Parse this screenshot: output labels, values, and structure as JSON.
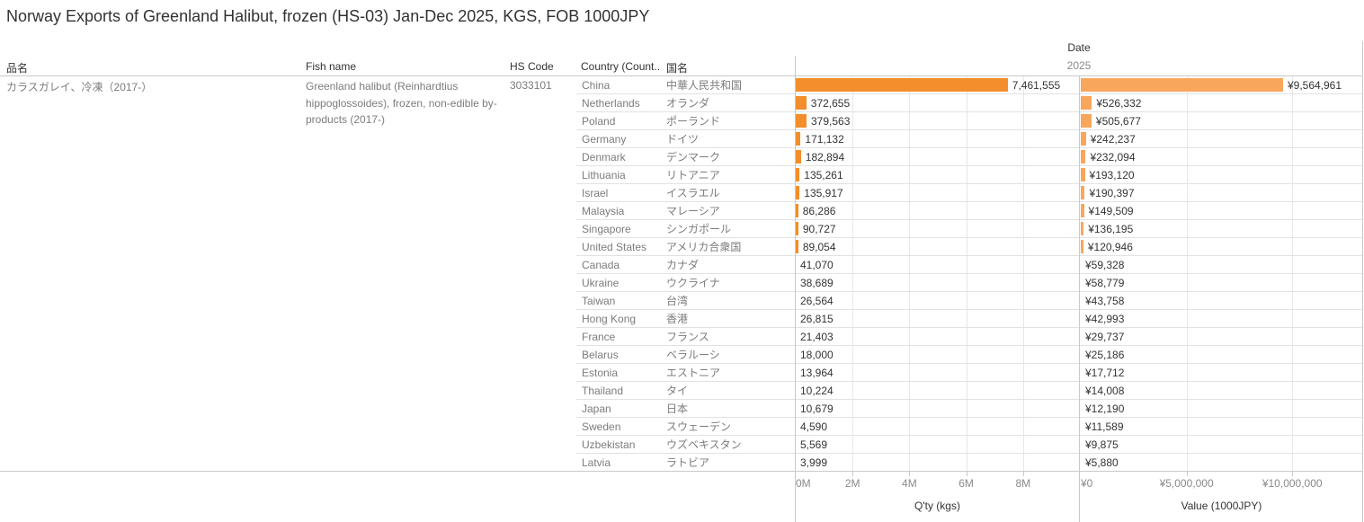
{
  "title": "Norway Exports of Greenland Halibut, frozen (HS-03) Jan-Dec 2025, KGS, FOB 1000JPY",
  "header": {
    "date_label": "Date",
    "year": "2025"
  },
  "columns": {
    "product": "品名",
    "fish_name": "Fish name",
    "hs_code": "HS Code",
    "country": "Country (Count..",
    "country_jp": "国名"
  },
  "product": {
    "name_jp": "カラスガレイ、冷凍（2017-）",
    "fish_name": "Greenland halibut (Reinhardtius hippoglossoides), frozen, non-edible by-products (2017-)",
    "hs_code": "3033101"
  },
  "colors": {
    "qty_bar": "#f28e2b",
    "value_bar": "#f9a65d"
  },
  "rows": [
    {
      "country": "China",
      "country_jp": "中華人民共和国",
      "qty_label": "7,461,555",
      "value_label": "¥9,564,961"
    },
    {
      "country": "Netherlands",
      "country_jp": "オランダ",
      "qty_label": "372,655",
      "value_label": "¥526,332"
    },
    {
      "country": "Poland",
      "country_jp": "ポーランド",
      "qty_label": "379,563",
      "value_label": "¥505,677"
    },
    {
      "country": "Germany",
      "country_jp": "ドイツ",
      "qty_label": "171,132",
      "value_label": "¥242,237"
    },
    {
      "country": "Denmark",
      "country_jp": "デンマーク",
      "qty_label": "182,894",
      "value_label": "¥232,094"
    },
    {
      "country": "Lithuania",
      "country_jp": "リトアニア",
      "qty_label": "135,261",
      "value_label": "¥193,120"
    },
    {
      "country": "Israel",
      "country_jp": "イスラエル",
      "qty_label": "135,917",
      "value_label": "¥190,397"
    },
    {
      "country": "Malaysia",
      "country_jp": "マレーシア",
      "qty_label": "86,286",
      "value_label": "¥149,509"
    },
    {
      "country": "Singapore",
      "country_jp": "シンガポール",
      "qty_label": "90,727",
      "value_label": "¥136,195"
    },
    {
      "country": "United States",
      "country_jp": "アメリカ合衆国",
      "qty_label": "89,054",
      "value_label": "¥120,946"
    },
    {
      "country": "Canada",
      "country_jp": "カナダ",
      "qty_label": "41,070",
      "value_label": "¥59,328"
    },
    {
      "country": "Ukraine",
      "country_jp": "ウクライナ",
      "qty_label": "38,689",
      "value_label": "¥58,779"
    },
    {
      "country": "Taiwan",
      "country_jp": "台湾",
      "qty_label": "26,564",
      "value_label": "¥43,758"
    },
    {
      "country": "Hong Kong",
      "country_jp": "香港",
      "qty_label": "26,815",
      "value_label": "¥42,993"
    },
    {
      "country": "France",
      "country_jp": "フランス",
      "qty_label": "21,403",
      "value_label": "¥29,737"
    },
    {
      "country": "Belarus",
      "country_jp": "ベラルーシ",
      "qty_label": "18,000",
      "value_label": "¥25,186"
    },
    {
      "country": "Estonia",
      "country_jp": "エストニア",
      "qty_label": "13,964",
      "value_label": "¥17,712"
    },
    {
      "country": "Thailand",
      "country_jp": "タイ",
      "qty_label": "10,224",
      "value_label": "¥14,008"
    },
    {
      "country": "Japan",
      "country_jp": "日本",
      "qty_label": "10,679",
      "value_label": "¥12,190"
    },
    {
      "country": "Sweden",
      "country_jp": "スウェーデン",
      "qty_label": "4,590",
      "value_label": "¥11,589"
    },
    {
      "country": "Uzbekistan",
      "country_jp": "ウズベキスタン",
      "qty_label": "5,569",
      "value_label": "¥9,875"
    },
    {
      "country": "Latvia",
      "country_jp": "ラトビア",
      "qty_label": "3,999",
      "value_label": "¥5,880"
    }
  ],
  "chart_data": {
    "type": "bar",
    "orientation": "horizontal",
    "title": "Norway Exports of Greenland Halibut, frozen (HS-03) Jan-Dec 2025, KGS, FOB 1000JPY",
    "categories": [
      "China",
      "Netherlands",
      "Poland",
      "Germany",
      "Denmark",
      "Lithuania",
      "Israel",
      "Malaysia",
      "Singapore",
      "United States",
      "Canada",
      "Ukraine",
      "Taiwan",
      "Hong Kong",
      "France",
      "Belarus",
      "Estonia",
      "Thailand",
      "Japan",
      "Sweden",
      "Uzbekistan",
      "Latvia"
    ],
    "categories_jp": [
      "中華人民共和国",
      "オランダ",
      "ポーランド",
      "ドイツ",
      "デンマーク",
      "リトアニア",
      "イスラエル",
      "マレーシア",
      "シンガポール",
      "アメリカ合衆国",
      "カナダ",
      "ウクライナ",
      "台湾",
      "香港",
      "フランス",
      "ベラルーシ",
      "エストニア",
      "タイ",
      "日本",
      "スウェーデン",
      "ウズベキスタン",
      "ラトビア"
    ],
    "sort": "Value (1000JPY) descending",
    "column_header": "2025",
    "series": [
      {
        "name": "Q'ty (kgs)",
        "values": [
          7461555,
          372655,
          379563,
          171132,
          182894,
          135261,
          135917,
          86286,
          90727,
          89054,
          41070,
          38689,
          26564,
          26815,
          21403,
          18000,
          13964,
          10224,
          10679,
          4590,
          5569,
          3999
        ],
        "axis_max": 10000000,
        "tick_values": [
          0,
          2000000,
          4000000,
          6000000,
          8000000
        ],
        "tick_labels": [
          "0M",
          "2M",
          "4M",
          "6M",
          "8M"
        ]
      },
      {
        "name": "Value (1000JPY)",
        "values": [
          9564961,
          526332,
          505677,
          242237,
          232094,
          193120,
          190397,
          149509,
          136195,
          120946,
          59328,
          58779,
          43758,
          42993,
          29737,
          25186,
          17712,
          14008,
          12190,
          11589,
          9875,
          5880
        ],
        "axis_max": 13350000,
        "tick_values": [
          0,
          5000000,
          10000000
        ],
        "tick_labels": [
          "¥0",
          "¥5,000,000",
          "¥10,000,000"
        ]
      }
    ]
  }
}
